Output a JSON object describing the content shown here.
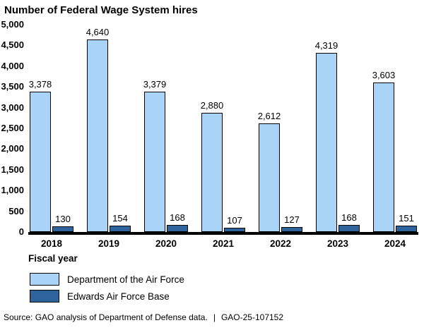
{
  "chart_data": {
    "type": "bar",
    "title": "Number of Federal Wage System hires",
    "xlabel": "Fiscal year",
    "categories": [
      "2018",
      "2019",
      "2020",
      "2021",
      "2022",
      "2023",
      "2024"
    ],
    "series": [
      {
        "name": "Department of the Air Force",
        "color": "#a9d4f7",
        "values": [
          3378,
          4640,
          3379,
          2880,
          2612,
          4319,
          3603
        ],
        "value_labels": [
          "3,378",
          "4,640",
          "3,379",
          "2,880",
          "2,612",
          "4,319",
          "3,603"
        ]
      },
      {
        "name": "Edwards Air Force Base",
        "color": "#2f639c",
        "values": [
          130,
          154,
          168,
          107,
          127,
          168,
          151
        ],
        "value_labels": [
          "130",
          "154",
          "168",
          "107",
          "127",
          "168",
          "151"
        ]
      }
    ],
    "ylim": [
      0,
      5000
    ],
    "yticks": [
      {
        "value": 0,
        "label": "0"
      },
      {
        "value": 500,
        "label": "500"
      },
      {
        "value": 1000,
        "label": "1,000"
      },
      {
        "value": 1500,
        "label": "1,500"
      },
      {
        "value": 2000,
        "label": "2,000"
      },
      {
        "value": 2500,
        "label": "2,500"
      },
      {
        "value": 3000,
        "label": "3,000"
      },
      {
        "value": 3500,
        "label": "3,500"
      },
      {
        "value": 4000,
        "label": "4,000"
      },
      {
        "value": 4500,
        "label": "4,500"
      },
      {
        "value": 5000,
        "label": "5,000"
      }
    ],
    "grid": false,
    "legend_position": "bottom-left",
    "bar_border_color": "#000000",
    "axis_line_color": "#000000"
  },
  "footer": {
    "source_text": "Source: GAO analysis of Department of Defense data.",
    "divider": "|",
    "report_number": "GAO-25-107152"
  }
}
